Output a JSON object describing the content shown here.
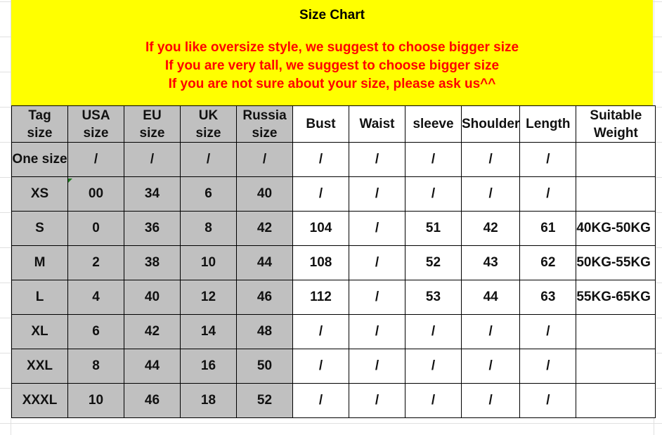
{
  "banner": {
    "title": "Size Chart",
    "notes": [
      "If you like oversize style, we suggest to choose bigger size",
      "If you are very tall, we suggest to choose bigger size",
      "If you are not sure about your size, please ask us^^"
    ],
    "background": "#ffff00",
    "note_color": "#ff0000"
  },
  "table": {
    "headers": [
      [
        "Tag",
        "size"
      ],
      [
        "USA",
        "size"
      ],
      [
        "EU",
        "size"
      ],
      [
        "UK",
        "size"
      ],
      [
        "Russia",
        "size"
      ],
      [
        "Bust"
      ],
      [
        "Waist"
      ],
      [
        "sleeve"
      ],
      [
        "Shoulder"
      ],
      [
        "Length"
      ],
      [
        "Suitable",
        "Weight"
      ]
    ],
    "rows": [
      [
        "One size",
        "/",
        "/",
        "/",
        "/",
        "/",
        "/",
        "/",
        "/",
        "/",
        ""
      ],
      [
        "XS",
        "00",
        "34",
        "6",
        "40",
        "/",
        "/",
        "/",
        "/",
        "/",
        ""
      ],
      [
        "S",
        "0",
        "36",
        "8",
        "42",
        "104",
        "/",
        "51",
        "42",
        "61",
        "40KG-50KG"
      ],
      [
        "M",
        "2",
        "38",
        "10",
        "44",
        "108",
        "/",
        "52",
        "43",
        "62",
        "50KG-55KG"
      ],
      [
        "L",
        "4",
        "40",
        "12",
        "46",
        "112",
        "/",
        "53",
        "44",
        "63",
        "55KG-65KG"
      ],
      [
        "XL",
        "6",
        "42",
        "14",
        "48",
        "/",
        "/",
        "/",
        "/",
        "/",
        ""
      ],
      [
        "XXL",
        "8",
        "44",
        "16",
        "50",
        "/",
        "/",
        "/",
        "/",
        "/",
        ""
      ],
      [
        "XXXL",
        "10",
        "46",
        "18",
        "52",
        "/",
        "/",
        "/",
        "/",
        "/",
        ""
      ]
    ],
    "size_column_bg": "#c0c0c0"
  }
}
